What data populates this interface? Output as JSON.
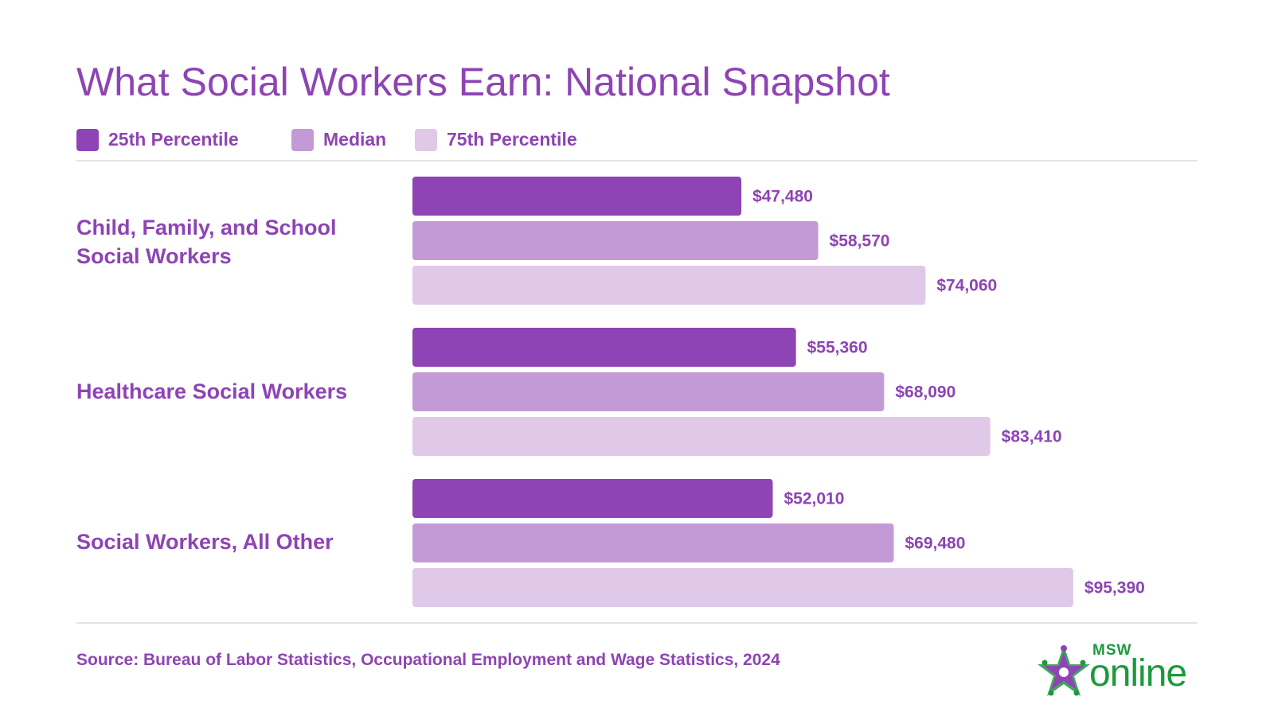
{
  "title": "What Social Workers Earn: National Snapshot",
  "legend": [
    {
      "label": "25th Percentile",
      "color": "#8e44b4"
    },
    {
      "label": "Median",
      "color": "#c39ad6"
    },
    {
      "label": "75th Percentile",
      "color": "#dfc8e8"
    }
  ],
  "chart_data": {
    "type": "bar",
    "orientation": "horizontal",
    "title": "What Social Workers Earn: National Snapshot",
    "categories": [
      "Child, Family, and School Social Workers",
      "Healthcare Social Workers",
      "Social Workers, All Other"
    ],
    "series": [
      {
        "name": "25th Percentile",
        "color": "#8e44b4",
        "values": [
          47480,
          55360,
          52010
        ],
        "labels": [
          "$47,480",
          "$55,360",
          "$52,010"
        ]
      },
      {
        "name": "Median",
        "color": "#c39ad6",
        "values": [
          58570,
          68090,
          69480
        ],
        "labels": [
          "$58,570",
          "$68,090",
          "$69,480"
        ]
      },
      {
        "name": "75th Percentile",
        "color": "#dfc8e8",
        "values": [
          74060,
          83410,
          95390
        ],
        "labels": [
          "$74,060",
          "$83,410",
          "$95,390"
        ]
      }
    ],
    "value_label_color": "#8e44b4",
    "legend_position": "top-left",
    "grid": false
  },
  "source": "Source: Bureau of Labor Statistics, Occupational Employment and Wage Statistics, 2024",
  "logo": {
    "top_text": "MSW",
    "main_text": "online",
    "color": "#1c9a3c",
    "accent_color": "#8e44b4"
  }
}
